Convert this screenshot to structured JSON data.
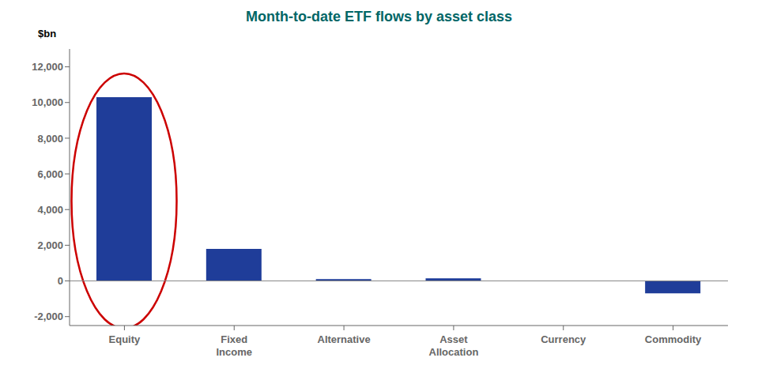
{
  "chart_data": {
    "type": "bar",
    "title": "Month-to-date ETF flows by asset class",
    "title_color": "#006666",
    "ylabel": "$bn",
    "categories": [
      "Equity",
      "Fixed\nIncome",
      "Alternative",
      "Asset\nAllocation",
      "Currency",
      "Commodity"
    ],
    "values": [
      10300,
      1800,
      100,
      150,
      0,
      -700
    ],
    "color": "#1F3D99",
    "ylim": [
      -2500,
      13000
    ],
    "yticks": [
      {
        "value": -2000,
        "label": "-2,000"
      },
      0,
      {
        "value": 2000,
        "label": "2,000"
      },
      {
        "value": 4000,
        "label": "4,000"
      },
      {
        "value": 6000,
        "label": "6,000"
      },
      {
        "value": 8000,
        "label": "8,000"
      },
      {
        "value": 10000,
        "label": "10,000"
      },
      {
        "value": 12000,
        "label": "12,000"
      }
    ],
    "grid": false
  }
}
